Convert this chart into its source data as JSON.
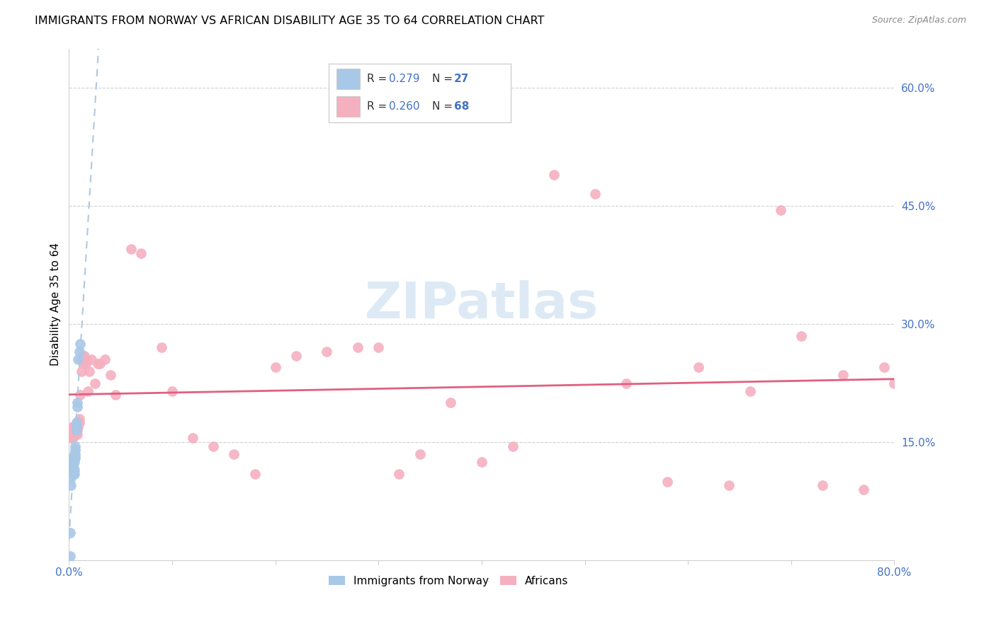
{
  "title": "IMMIGRANTS FROM NORWAY VS AFRICAN DISABILITY AGE 35 TO 64 CORRELATION CHART",
  "source": "Source: ZipAtlas.com",
  "ylabel": "Disability Age 35 to 64",
  "xlim": [
    0.0,
    0.8
  ],
  "ylim": [
    0.0,
    0.65
  ],
  "xticks": [
    0.0,
    0.1,
    0.2,
    0.3,
    0.4,
    0.5,
    0.6,
    0.7,
    0.8
  ],
  "xticklabels": [
    "0.0%",
    "",
    "",
    "",
    "",
    "",
    "",
    "",
    "80.0%"
  ],
  "yticks_right": [
    0.15,
    0.3,
    0.45,
    0.6
  ],
  "ytick_labels_right": [
    "15.0%",
    "30.0%",
    "45.0%",
    "60.0%"
  ],
  "legend_norway_r": "0.279",
  "legend_norway_n": "27",
  "legend_africa_r": "0.260",
  "legend_africa_n": "68",
  "norway_color": "#a8c8e8",
  "africa_color": "#f5b0c0",
  "norway_line_color": "#6090c8",
  "africa_line_color": "#e06080",
  "norway_x": [
    0.001,
    0.002,
    0.002,
    0.003,
    0.003,
    0.003,
    0.004,
    0.004,
    0.004,
    0.005,
    0.005,
    0.005,
    0.005,
    0.005,
    0.006,
    0.006,
    0.006,
    0.006,
    0.007,
    0.007,
    0.007,
    0.008,
    0.008,
    0.009,
    0.01,
    0.011,
    0.001
  ],
  "norway_y": [
    0.035,
    0.095,
    0.105,
    0.115,
    0.125,
    0.115,
    0.13,
    0.12,
    0.11,
    0.135,
    0.13,
    0.125,
    0.115,
    0.11,
    0.145,
    0.14,
    0.135,
    0.13,
    0.175,
    0.17,
    0.165,
    0.2,
    0.195,
    0.255,
    0.265,
    0.275,
    0.005
  ],
  "africa_x": [
    0.002,
    0.003,
    0.003,
    0.004,
    0.004,
    0.005,
    0.005,
    0.005,
    0.006,
    0.006,
    0.007,
    0.007,
    0.008,
    0.008,
    0.009,
    0.009,
    0.01,
    0.01,
    0.011,
    0.012,
    0.012,
    0.013,
    0.013,
    0.014,
    0.015,
    0.016,
    0.017,
    0.018,
    0.02,
    0.022,
    0.025,
    0.028,
    0.03,
    0.035,
    0.04,
    0.045,
    0.06,
    0.07,
    0.09,
    0.1,
    0.12,
    0.14,
    0.16,
    0.18,
    0.2,
    0.22,
    0.25,
    0.28,
    0.3,
    0.32,
    0.34,
    0.37,
    0.4,
    0.43,
    0.47,
    0.51,
    0.54,
    0.58,
    0.61,
    0.64,
    0.66,
    0.69,
    0.71,
    0.73,
    0.75,
    0.77,
    0.79,
    0.8
  ],
  "africa_y": [
    0.155,
    0.16,
    0.165,
    0.155,
    0.17,
    0.16,
    0.165,
    0.17,
    0.16,
    0.165,
    0.165,
    0.17,
    0.16,
    0.165,
    0.17,
    0.175,
    0.175,
    0.18,
    0.21,
    0.24,
    0.255,
    0.255,
    0.26,
    0.25,
    0.26,
    0.25,
    0.255,
    0.215,
    0.24,
    0.255,
    0.225,
    0.25,
    0.25,
    0.255,
    0.235,
    0.21,
    0.395,
    0.39,
    0.27,
    0.215,
    0.155,
    0.145,
    0.135,
    0.11,
    0.245,
    0.26,
    0.265,
    0.27,
    0.27,
    0.11,
    0.135,
    0.2,
    0.125,
    0.145,
    0.49,
    0.465,
    0.225,
    0.1,
    0.245,
    0.095,
    0.215,
    0.445,
    0.285,
    0.095,
    0.235,
    0.09,
    0.245,
    0.225
  ]
}
